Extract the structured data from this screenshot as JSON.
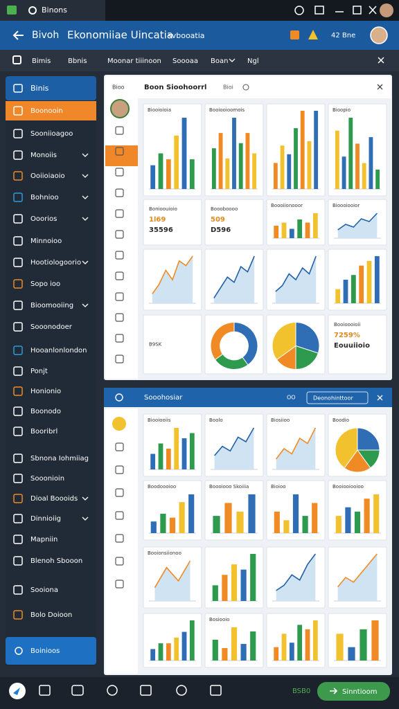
{
  "window": {
    "tab": "Binons"
  },
  "header": {
    "title": "Bivoh",
    "subtitle": "Ekonomiiae Uincatia",
    "extra": "svbooatia",
    "badge": "42 Bne"
  },
  "nav": [
    "Bimis",
    "Bbnis",
    "Moonar tiiinoon",
    "Soooaa",
    "Boan",
    "Ngl"
  ],
  "palette": [
    "#2f6db5",
    "#2e9a4d",
    "#f08a24",
    "#f2c12e"
  ],
  "sidebar": {
    "header": "Binis",
    "items": [
      {
        "label": "Boonooin",
        "active": true
      },
      {
        "label": "Sooniioagoo"
      },
      {
        "label": "Monoiis",
        "chevron": true
      },
      {
        "label": "Ooiioiaoio",
        "chevron": true
      },
      {
        "label": "Bohnioo",
        "chevron": true
      },
      {
        "label": "Ooorios",
        "chevron": true
      },
      {
        "label": "Minnoioo"
      },
      {
        "label": "Hootiologoorio",
        "chevron": true
      },
      {
        "label": "Sopo ioo"
      },
      {
        "label": "Bioomooiing",
        "chevron": true
      },
      {
        "label": "Sooonodoer"
      },
      {
        "label": "Hooanlonlondon"
      },
      {
        "label": "Ponjt"
      },
      {
        "label": "Honionio"
      },
      {
        "label": "Boonodo"
      },
      {
        "label": "Booribrl"
      },
      {
        "label": "Sbnona Iohmiiag"
      },
      {
        "label": "Sooonioin"
      },
      {
        "label": "Dioal Boooids",
        "chevron": true
      },
      {
        "label": "Dinnioiig",
        "chevron": true
      },
      {
        "label": "Mapniin"
      },
      {
        "label": "Blenoh Sbooon"
      },
      {
        "label": "Sooiona"
      },
      {
        "label": "Bolo Doioon"
      }
    ],
    "footer": "Boinioos"
  },
  "panel1": {
    "corner": "Bioo",
    "title": "Boon Sioohoorrl",
    "search": "Bioi",
    "cards": [
      {
        "title": "Biooioioia",
        "type": "bar",
        "values": [
          4,
          6,
          5,
          9,
          12,
          5
        ]
      },
      {
        "title": "Booiooioomois",
        "type": "bar",
        "values": [
          8,
          11,
          6,
          14,
          9,
          11,
          7
        ]
      },
      {
        "type": "bar",
        "values": [
          6,
          10,
          8,
          14,
          18,
          11,
          18
        ]
      },
      {
        "title": "Bioopio",
        "type": "bar",
        "values": [
          9,
          5,
          11,
          7,
          4,
          8,
          3
        ]
      },
      {
        "type": "text",
        "lines": [
          "Bonioouioio",
          "1l69",
          "35596"
        ]
      },
      {
        "type": "text",
        "lines": [
          "Boooboooo",
          "509",
          "D596"
        ]
      },
      {
        "title": "Boooiionooor",
        "type": "bar",
        "values": [
          4,
          5,
          3,
          6,
          5,
          8
        ]
      },
      {
        "title": "Bioooiooior",
        "type": "line",
        "values": [
          3,
          5,
          4,
          7,
          6,
          9
        ]
      },
      {
        "type": "line",
        "values": [
          2,
          4,
          7,
          5,
          9,
          8,
          10
        ]
      },
      {
        "type": "line",
        "values": [
          1,
          3,
          5,
          4,
          7,
          6,
          9
        ]
      },
      {
        "type": "line",
        "values": [
          2,
          3,
          5,
          4,
          6,
          5,
          8
        ]
      },
      {
        "type": "bar",
        "values": [
          3,
          5,
          6,
          8,
          9,
          10
        ]
      },
      {
        "type": "text",
        "lines": [
          "B9SK"
        ]
      },
      {
        "type": "donut",
        "values": [
          40,
          25,
          35
        ]
      },
      {
        "type": "pie",
        "values": [
          30,
          20,
          15,
          35
        ]
      },
      {
        "type": "text",
        "lines": [
          "Booioooioii",
          "7259%",
          "Eouuiioio"
        ]
      }
    ]
  },
  "panel2": {
    "title": "Sooohosiar",
    "tag": "OO",
    "button": "Deonohinttoor",
    "cards": [
      {
        "title": "Biooiooiis",
        "type": "bar",
        "values": [
          3,
          5,
          4,
          8,
          6,
          7
        ]
      },
      {
        "title": "Boolo",
        "type": "line",
        "values": [
          3,
          5,
          4,
          7,
          6,
          9
        ]
      },
      {
        "title": "Biosiioo",
        "type": "line",
        "values": [
          2,
          4,
          3,
          6,
          5,
          8
        ]
      },
      {
        "title": "Boodio",
        "type": "pie",
        "values": [
          25,
          15,
          20,
          40
        ]
      },
      {
        "title": "Boodoooioo",
        "type": "bar",
        "values": [
          3,
          5,
          4,
          8,
          10
        ]
      },
      {
        "title": "Boooiooo Skoiiia",
        "type": "bar",
        "values": [
          4,
          7,
          5,
          9
        ]
      },
      {
        "title": "Bioioo",
        "type": "bar",
        "values": [
          5,
          3,
          9,
          4,
          7
        ]
      },
      {
        "title": "Booiooiooioo",
        "type": "bar",
        "values": [
          4,
          6,
          5,
          8,
          9
        ]
      },
      {
        "title": "Booionsiionoo",
        "type": "line",
        "values": [
          2,
          5,
          3,
          6
        ]
      },
      {
        "type": "bar",
        "values": [
          3,
          5,
          7,
          6,
          9
        ]
      },
      {
        "type": "line",
        "values": [
          2,
          3,
          5,
          4,
          7,
          9
        ]
      },
      {
        "type": "line",
        "values": [
          3,
          5,
          4,
          6,
          8,
          10
        ]
      },
      {
        "type": "bar",
        "values": [
          2,
          3,
          3,
          4,
          5,
          7
        ]
      },
      {
        "title": "Bosiooio",
        "type": "bar",
        "values": [
          5,
          3,
          8,
          4,
          7
        ]
      },
      {
        "type": "bar",
        "values": [
          3,
          6,
          4,
          8,
          7,
          9
        ]
      },
      {
        "type": "bar",
        "values": [
          6,
          3,
          7,
          9
        ]
      }
    ]
  },
  "taskbar": {
    "count": "BSB0",
    "button": "Sinntioom"
  }
}
